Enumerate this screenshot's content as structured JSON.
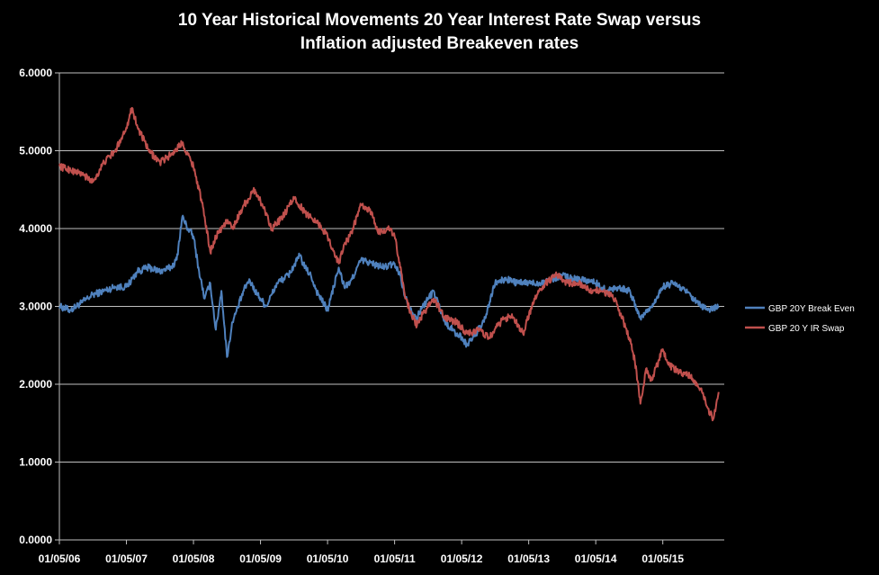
{
  "chart_data": {
    "type": "line",
    "title_lines": [
      "10 Year Historical Movements 20 Year Interest Rate Swap versus",
      "Inflation adjusted Breakeven rates"
    ],
    "y_ticks": [
      "0.0000",
      "1.0000",
      "2.0000",
      "3.0000",
      "4.0000",
      "5.0000",
      "6.0000"
    ],
    "ylim": [
      0,
      6
    ],
    "x_tick_labels": [
      "01/05/06",
      "01/05/07",
      "01/05/08",
      "01/05/09",
      "01/05/10",
      "01/05/11",
      "01/05/12",
      "01/05/13",
      "01/05/14",
      "01/05/15"
    ],
    "x_range": [
      "2006-05-01",
      "2016-03-31"
    ],
    "grid": "horizontal",
    "legend_position": "right",
    "series": [
      {
        "name": "GBP 20Y Break Even",
        "color": "#4f81bd",
        "x": [
          "2006-05",
          "2006-07",
          "2006-09",
          "2006-11",
          "2007-01",
          "2007-03",
          "2007-05",
          "2007-07",
          "2007-09",
          "2007-11",
          "2008-01",
          "2008-02",
          "2008-03",
          "2008-04",
          "2008-05",
          "2008-06",
          "2008-07",
          "2008-08",
          "2008-09",
          "2008-10",
          "2008-11",
          "2008-12",
          "2009-01",
          "2009-02",
          "2009-03",
          "2009-04",
          "2009-05",
          "2009-06",
          "2009-08",
          "2009-10",
          "2009-12",
          "2010-01",
          "2010-02",
          "2010-03",
          "2010-05",
          "2010-07",
          "2010-08",
          "2010-09",
          "2010-11",
          "2011-01",
          "2011-03",
          "2011-05",
          "2011-06",
          "2011-07",
          "2011-08",
          "2011-09",
          "2011-10",
          "2011-11",
          "2011-12",
          "2012-02",
          "2012-04",
          "2012-05",
          "2012-06",
          "2012-07",
          "2012-09",
          "2012-11",
          "2013-01",
          "2013-03",
          "2013-05",
          "2013-07",
          "2013-09",
          "2013-11",
          "2014-01",
          "2014-03",
          "2014-05",
          "2014-07",
          "2014-09",
          "2014-11",
          "2015-01",
          "2015-03",
          "2015-05",
          "2015-07",
          "2015-09",
          "2015-11",
          "2016-01",
          "2016-03"
        ],
        "values": [
          3.0,
          2.95,
          3.05,
          3.15,
          3.2,
          3.25,
          3.25,
          3.45,
          3.5,
          3.45,
          3.5,
          3.6,
          4.15,
          4.0,
          3.9,
          3.45,
          3.1,
          3.3,
          2.7,
          3.2,
          2.35,
          2.8,
          3.0,
          3.2,
          3.35,
          3.2,
          3.1,
          3.0,
          3.3,
          3.4,
          3.65,
          3.5,
          3.4,
          3.2,
          2.95,
          3.5,
          3.25,
          3.3,
          3.6,
          3.55,
          3.5,
          3.55,
          3.4,
          3.1,
          2.95,
          2.85,
          3.0,
          3.1,
          3.2,
          2.8,
          2.65,
          2.6,
          2.5,
          2.6,
          2.8,
          3.3,
          3.35,
          3.3,
          3.3,
          3.3,
          3.35,
          3.4,
          3.35,
          3.35,
          3.3,
          3.2,
          3.25,
          3.2,
          2.85,
          3.0,
          3.25,
          3.3,
          3.2,
          3.05,
          2.95,
          3.0
        ]
      },
      {
        "name": "GBP 20 Y IR Swap",
        "color": "#c0504d",
        "x": [
          "2006-05",
          "2006-07",
          "2006-09",
          "2006-11",
          "2007-01",
          "2007-03",
          "2007-05",
          "2007-06",
          "2007-07",
          "2007-09",
          "2007-11",
          "2008-01",
          "2008-03",
          "2008-04",
          "2008-05",
          "2008-06",
          "2008-07",
          "2008-08",
          "2008-09",
          "2008-10",
          "2008-11",
          "2008-12",
          "2009-02",
          "2009-04",
          "2009-06",
          "2009-07",
          "2009-09",
          "2009-11",
          "2010-01",
          "2010-03",
          "2010-05",
          "2010-07",
          "2010-08",
          "2010-09",
          "2010-11",
          "2011-01",
          "2011-02",
          "2011-04",
          "2011-05",
          "2011-06",
          "2011-07",
          "2011-08",
          "2011-09",
          "2011-10",
          "2011-12",
          "2012-02",
          "2012-04",
          "2012-06",
          "2012-08",
          "2012-10",
          "2012-12",
          "2013-02",
          "2013-04",
          "2013-06",
          "2013-08",
          "2013-10",
          "2013-12",
          "2014-02",
          "2014-04",
          "2014-06",
          "2014-08",
          "2014-10",
          "2014-11",
          "2014-12",
          "2015-01",
          "2015-02",
          "2015-03",
          "2015-05",
          "2015-06",
          "2015-08",
          "2015-10",
          "2015-12",
          "2016-01",
          "2016-02",
          "2016-03"
        ],
        "values": [
          4.8,
          4.75,
          4.7,
          4.6,
          4.85,
          5.0,
          5.3,
          5.55,
          5.3,
          5.0,
          4.85,
          4.95,
          5.1,
          4.95,
          4.8,
          4.5,
          4.15,
          3.7,
          3.9,
          4.0,
          4.1,
          4.0,
          4.3,
          4.5,
          4.2,
          4.0,
          4.15,
          4.4,
          4.2,
          4.1,
          3.9,
          3.55,
          3.8,
          3.9,
          4.3,
          4.2,
          3.95,
          4.0,
          3.9,
          3.5,
          3.1,
          2.9,
          2.75,
          2.9,
          3.1,
          2.85,
          2.8,
          2.65,
          2.7,
          2.6,
          2.8,
          2.9,
          2.65,
          3.1,
          3.3,
          3.4,
          3.3,
          3.3,
          3.2,
          3.2,
          3.15,
          2.8,
          2.6,
          2.3,
          1.75,
          2.2,
          2.05,
          2.45,
          2.25,
          2.15,
          2.1,
          1.9,
          1.7,
          1.55,
          1.9
        ]
      }
    ]
  }
}
